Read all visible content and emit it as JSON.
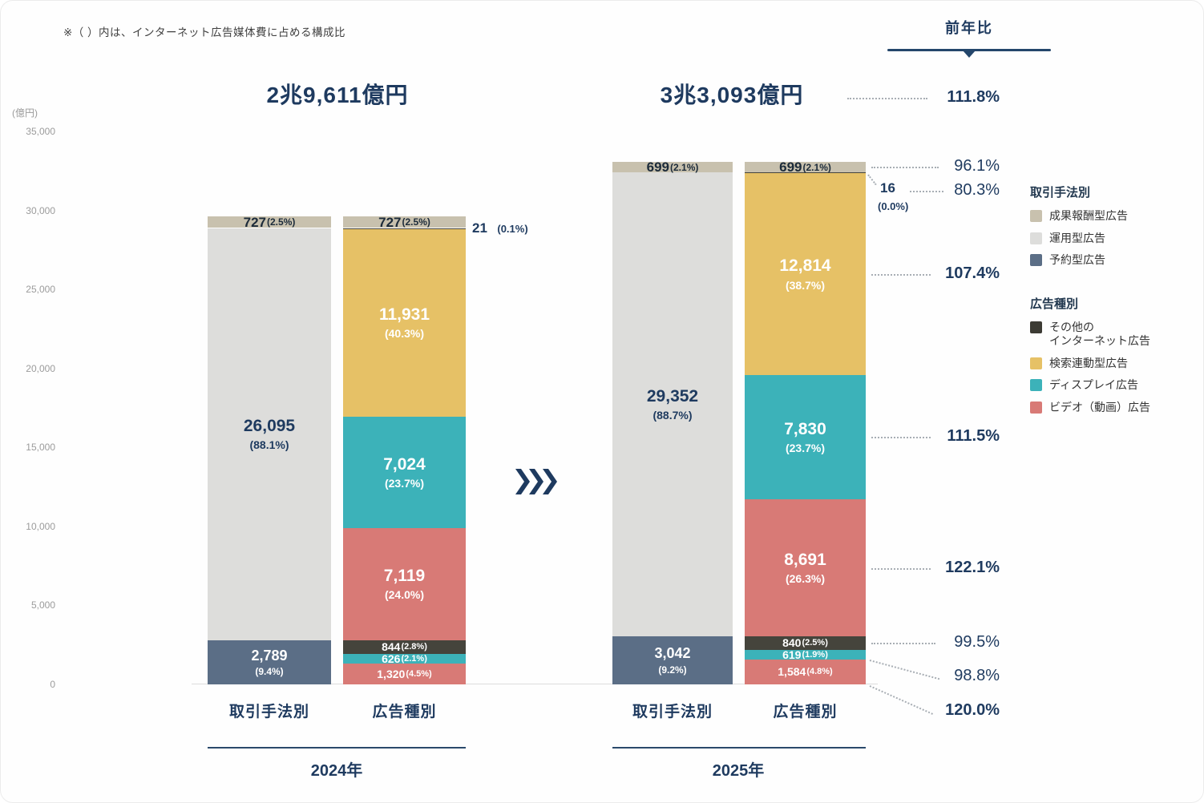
{
  "note": "※（ ）内は、インターネット広告媒体費に占める構成比",
  "yoy_header": "前年比",
  "axis": {
    "unit_label": "(億円)"
  },
  "colors": {
    "navy": "#1e3a5f",
    "tan": "#c8c1ae",
    "lightGray": "#dddddb",
    "blueGray": "#5b6e86",
    "yellow": "#e6c166",
    "teal": "#3cb2b9",
    "red": "#d87a76",
    "dark": "#45443c",
    "darkLegend": "#3c3b34",
    "tickGray": "#9b9b9b"
  },
  "chart_data": {
    "type": "bar",
    "unit": "億円",
    "ylim": [
      0,
      35000
    ],
    "yticks": [
      0,
      5000,
      10000,
      15000,
      20000,
      25000,
      30000,
      35000
    ],
    "grid": false,
    "legend_position": "right",
    "groups": [
      {
        "year": "2024年",
        "total": 29611,
        "total_label": "2兆9,611億円",
        "bars": [
          {
            "label": "取引手法別",
            "segments": [
              {
                "name": "予約型広告",
                "value": 2789,
                "display": "2,789",
                "pct": "(9.4%)",
                "color": "blueGray",
                "text": "stacked-white"
              },
              {
                "name": "運用型広告",
                "value": 26095,
                "display": "26,095",
                "pct": "(88.1%)",
                "color": "lightGray",
                "text": "stacked-navy"
              },
              {
                "name": "成果報酬型広告",
                "value": 727,
                "display": "727",
                "pct": "(2.5%)",
                "color": "tan",
                "text": "strip-dark"
              }
            ]
          },
          {
            "label": "広告種別",
            "segments": [
              {
                "name": "ビデオ（動画）広告",
                "value": 1320,
                "display": "1,320",
                "pct": "(4.5%)",
                "color": "red",
                "text": "strip-white"
              },
              {
                "name": "ディスプレイ広告",
                "value": 626,
                "display": "626",
                "pct": "(2.1%)",
                "color": "teal",
                "text": "strip-white"
              },
              {
                "name": "その他のインターネット広告",
                "value": 844,
                "display": "844",
                "pct": "(2.8%)",
                "color": "dark",
                "text": "strip-white"
              },
              {
                "name": "ビデオ（動画）広告",
                "value": 7119,
                "display": "7,119",
                "pct": "(24.0%)",
                "color": "red",
                "text": "stacked-white"
              },
              {
                "name": "ディスプレイ広告",
                "value": 7024,
                "display": "7,024",
                "pct": "(23.7%)",
                "color": "teal",
                "text": "stacked-white"
              },
              {
                "name": "検索連動型広告",
                "value": 11931,
                "display": "11,931",
                "pct": "(40.3%)",
                "color": "yellow",
                "text": "stacked-white"
              },
              {
                "name": "その他のインターネット広告",
                "value": 21,
                "display": "21",
                "pct": "(0.1%)",
                "color": "dark",
                "text": "outside"
              },
              {
                "name": "成果報酬型広告",
                "value": 727,
                "display": "727",
                "pct": "(2.5%)",
                "color": "tan",
                "text": "strip-dark"
              }
            ]
          }
        ]
      },
      {
        "year": "2025年",
        "total": 33093,
        "total_label": "3兆3,093億円",
        "bars": [
          {
            "label": "取引手法別",
            "segments": [
              {
                "name": "予約型広告",
                "value": 3042,
                "display": "3,042",
                "pct": "(9.2%)",
                "color": "blueGray",
                "text": "stacked-white"
              },
              {
                "name": "運用型広告",
                "value": 29352,
                "display": "29,352",
                "pct": "(88.7%)",
                "color": "lightGray",
                "text": "stacked-navy"
              },
              {
                "name": "成果報酬型広告",
                "value": 699,
                "display": "699",
                "pct": "(2.1%)",
                "color": "tan",
                "text": "strip-dark"
              }
            ]
          },
          {
            "label": "広告種別",
            "segments": [
              {
                "name": "ビデオ（動画）広告",
                "value": 1584,
                "display": "1,584",
                "pct": "(4.8%)",
                "color": "red",
                "text": "strip-white"
              },
              {
                "name": "ディスプレイ広告",
                "value": 619,
                "display": "619",
                "pct": "(1.9%)",
                "color": "teal",
                "text": "strip-white"
              },
              {
                "name": "その他のインターネット広告",
                "value": 840,
                "display": "840",
                "pct": "(2.5%)",
                "color": "dark",
                "text": "strip-white"
              },
              {
                "name": "ビデオ（動画）広告",
                "value": 8691,
                "display": "8,691",
                "pct": "(26.3%)",
                "color": "red",
                "text": "stacked-white"
              },
              {
                "name": "ディスプレイ広告",
                "value": 7830,
                "display": "7,830",
                "pct": "(23.7%)",
                "color": "teal",
                "text": "stacked-white"
              },
              {
                "name": "検索連動型広告",
                "value": 12814,
                "display": "12,814",
                "pct": "(38.7%)",
                "color": "yellow",
                "text": "stacked-white"
              },
              {
                "name": "その他のインターネット広告",
                "value": 16,
                "display": "16",
                "pct": "(0.0%)",
                "color": "dark",
                "text": "outside"
              },
              {
                "name": "成果報酬型広告",
                "value": 699,
                "display": "699",
                "pct": "(2.1%)",
                "color": "tan",
                "text": "strip-dark"
              }
            ]
          }
        ]
      }
    ],
    "yoy_labels": [
      "111.8%",
      "96.1%",
      "80.3%",
      "107.4%",
      "111.5%",
      "122.1%",
      "99.5%",
      "98.8%",
      "120.0%"
    ]
  },
  "legend": {
    "sections": [
      {
        "title": "取引手法別",
        "items": [
          {
            "label": "成果報酬型広告",
            "color": "tan"
          },
          {
            "label": "運用型広告",
            "color": "lightGray"
          },
          {
            "label": "予約型広告",
            "color": "blueGray"
          }
        ]
      },
      {
        "title": "広告種別",
        "items": [
          {
            "label": "その他の\nインターネット広告",
            "color": "darkLegend"
          },
          {
            "label": "検索連動型広告",
            "color": "yellow"
          },
          {
            "label": "ディスプレイ広告",
            "color": "teal"
          },
          {
            "label": "ビデオ（動画）広告",
            "color": "red"
          }
        ]
      }
    ]
  }
}
